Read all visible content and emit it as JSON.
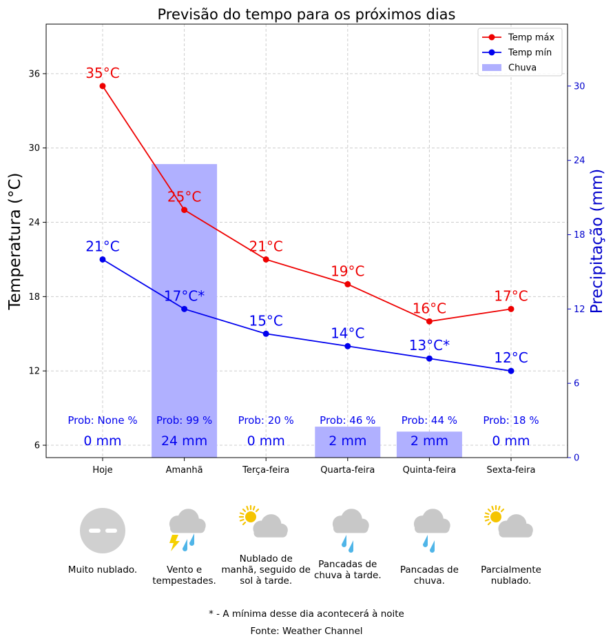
{
  "chart_data": {
    "type": "line+bar",
    "title": "Previsão do tempo para os próximos dias",
    "ylabel_left": "Temperatura (°C)",
    "ylabel_right": "Precipitação (mm)",
    "categories": [
      "Hoje",
      "Amanhã",
      "Terça-feira",
      "Quarta-feira",
      "Quinta-feira",
      "Sexta-feira"
    ],
    "ylim_left": [
      5,
      40
    ],
    "yticks_left": [
      6,
      12,
      18,
      24,
      30,
      36
    ],
    "ylim_right": [
      0,
      35
    ],
    "yticks_right": [
      0,
      6,
      12,
      18,
      24,
      30
    ],
    "grid": true,
    "legend_placement": "top-right",
    "series": [
      {
        "name": "Temp máx",
        "kind": "line",
        "axis": "left",
        "color": "#ee0000",
        "values": [
          35,
          25,
          21,
          19,
          16,
          17
        ],
        "labels": [
          "35°C",
          "25°C",
          "21°C",
          "19°C",
          "16°C",
          "17°C"
        ]
      },
      {
        "name": "Temp mín",
        "kind": "line",
        "axis": "left",
        "color": "#0000ee",
        "values": [
          21,
          17,
          15,
          14,
          13,
          12
        ],
        "labels": [
          "21°C",
          "17°C*",
          "15°C",
          "14°C",
          "13°C*",
          "12°C"
        ]
      },
      {
        "name": "Chuva",
        "kind": "bar",
        "axis": "right",
        "color": "#b0b0ff",
        "values": [
          0,
          23.7,
          0,
          2.5,
          2.1,
          0
        ],
        "labels": [
          "0 mm",
          "24 mm",
          "0 mm",
          "2 mm",
          "2 mm",
          "0 mm"
        ]
      }
    ],
    "probabilities": [
      "Prob: None %",
      "Prob: 99 %",
      "Prob: 20 %",
      "Prob: 46 %",
      "Prob: 44 %",
      "Prob: 18 %"
    ]
  },
  "conditions": [
    {
      "icon": "overcast-cloud-icon",
      "text": "Muito nublado."
    },
    {
      "icon": "thunderstorm-icon",
      "text": "Vento e tempestades."
    },
    {
      "icon": "sun-behind-cloud-icon",
      "text": "Nublado de manhã, seguido de sol à tarde."
    },
    {
      "icon": "rain-cloud-icon",
      "text": "Pancadas de chuva à tarde."
    },
    {
      "icon": "rain-cloud-icon",
      "text": "Pancadas de chuva."
    },
    {
      "icon": "sun-behind-cloud-icon",
      "text": "Parcialmente nublado."
    }
  ],
  "footnote": "* - A mínima desse dia acontecerá à noite",
  "source": "Fonte: Weather Channel"
}
